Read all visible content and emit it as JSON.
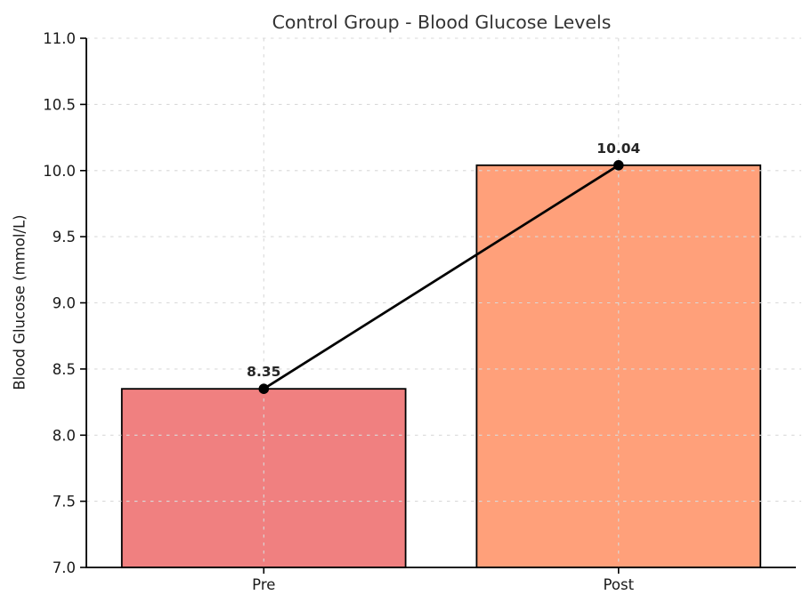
{
  "chart_data": {
    "type": "bar",
    "title": "Control Group - Blood Glucose Levels",
    "ylabel": "Blood Glucose (mmol/L)",
    "xlabel": "",
    "categories": [
      "Pre",
      "Post"
    ],
    "values": [
      8.35,
      10.04
    ],
    "value_labels": [
      "8.35",
      "10.04"
    ],
    "bar_colors": [
      "#F08080",
      "#FFA07A"
    ],
    "bar_edge_color": "#000000",
    "ylim": [
      7.0,
      11.0
    ],
    "yticks": [
      7.0,
      7.5,
      8.0,
      8.5,
      9.0,
      9.5,
      10.0,
      10.5,
      11.0
    ],
    "ytick_labels": [
      "7.0",
      "7.5",
      "8.0",
      "8.5",
      "9.0",
      "9.5",
      "10.0",
      "10.5",
      "11.0"
    ],
    "grid": true,
    "grid_style": "dashed",
    "grid_color": "#d9d9d9",
    "overlay_line": {
      "type": "line",
      "color": "#000000",
      "marker": "circle",
      "values": [
        8.35,
        10.04
      ]
    },
    "title_color": "#333333",
    "tick_label_color": "#1a1a1a",
    "value_label_color": "#262626",
    "legend": "none"
  }
}
